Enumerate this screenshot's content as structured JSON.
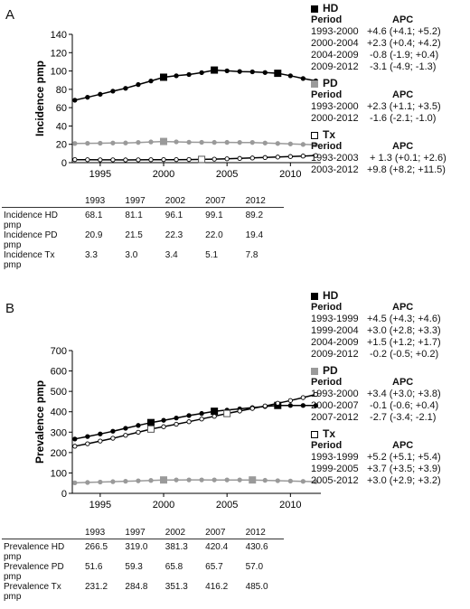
{
  "panels": [
    {
      "letter": "A",
      "legend_blocks": [
        {
          "name": "HD",
          "marker": "square-black",
          "period_label": "Period",
          "apc_label": "APC",
          "rows": [
            [
              "1993-2000",
              "+4.6 (+4.1; +5.2)"
            ],
            [
              "2000-2004",
              "+2.3 (+0.4; +4.2)"
            ],
            [
              "2004-2009",
              " -0.8 (-1.9; +0.4)"
            ],
            [
              "2009-2012",
              " -3.1 (-4.9; -1.3)"
            ]
          ]
        },
        {
          "name": "PD",
          "marker": "square-gray",
          "period_label": "Period",
          "apc_label": "APC",
          "rows": [
            [
              "1993-2000",
              "+2.3 (+1.1; +3.5)"
            ],
            [
              "2000-2012",
              " -1.6 (-2.1; -1.0)"
            ]
          ]
        },
        {
          "name": "Tx",
          "marker": "square-white",
          "period_label": "Period",
          "apc_label": "APC",
          "rows": [
            [
              "1993-2003",
              " + 1.3 (+0.1; +2.6)"
            ],
            [
              "2003-2012",
              "+9.8 (+8.2; +11.5)"
            ]
          ]
        }
      ],
      "table": {
        "years": [
          "1993",
          "1997",
          "2002",
          "2007",
          "2012"
        ],
        "rows": [
          {
            "label": [
              "Incidence HD",
              "pmp"
            ],
            "values": [
              "68.1",
              "81.1",
              "96.1",
              "99.1",
              "89.2"
            ]
          },
          {
            "label": [
              "Incidence PD",
              "pmp"
            ],
            "values": [
              "20.9",
              "21.5",
              "22.3",
              "22.0",
              "19.4"
            ]
          },
          {
            "label": [
              "Incidence Tx",
              "pmp"
            ],
            "values": [
              "3.3",
              "3.0",
              "3.4",
              "5.1",
              "7.8"
            ]
          }
        ]
      }
    },
    {
      "letter": "B",
      "legend_blocks": [
        {
          "name": "HD",
          "marker": "square-black",
          "period_label": "Period",
          "apc_label": "APC",
          "rows": [
            [
              "1993-1999",
              "+4.5 (+4.3; +4.6)"
            ],
            [
              "1999-2004",
              "+3.0 (+2.8; +3.3)"
            ],
            [
              "2004-2009",
              "+1.5 (+1.2; +1.7)"
            ],
            [
              "2009-2012",
              " -0.2 (-0.5; +0.2)"
            ]
          ]
        },
        {
          "name": "PD",
          "marker": "square-gray",
          "period_label": "Period",
          "apc_label": "APC",
          "rows": [
            [
              "1993-2000",
              "+3.4 (+3.0; +3.8)"
            ],
            [
              "2000-2007",
              " -0.1 (-0.6; +0.4)"
            ],
            [
              "2007-2012",
              " -2.7 (-3.4; -2.1)"
            ]
          ]
        },
        {
          "name": "Tx",
          "marker": "square-white",
          "period_label": "Period",
          "apc_label": "APC",
          "rows": [
            [
              "1993-1999",
              "+5.2 (+5.1; +5.4)"
            ],
            [
              "1999-2005",
              "+3.7 (+3.5; +3.9)"
            ],
            [
              "2005-2012",
              "+3.0 (+2.9; +3.2)"
            ]
          ]
        }
      ],
      "table": {
        "years": [
          "1993",
          "1997",
          "2002",
          "2007",
          "2012"
        ],
        "rows": [
          {
            "label": [
              "Prevalence HD",
              "pmp"
            ],
            "values": [
              "266.5",
              "319.0",
              "381.3",
              "420.4",
              "430.6"
            ]
          },
          {
            "label": [
              "Prevalence PD",
              "pmp"
            ],
            "values": [
              "51.6",
              "59.3",
              "65.8",
              "65.7",
              "57.0"
            ]
          },
          {
            "label": [
              "Prevalence Tx",
              "pmp"
            ],
            "values": [
              "231.2",
              "284.8",
              "351.3",
              "416.2",
              "485.0"
            ]
          }
        ]
      }
    }
  ],
  "chart_data": [
    {
      "type": "line",
      "ylabel": "Incidence pmp",
      "xlabel": "",
      "ylim": [
        0,
        140
      ],
      "xlim": [
        1992.8,
        2012.4
      ],
      "yticks": [
        0,
        20,
        40,
        60,
        80,
        100,
        120,
        140
      ],
      "xticks": [
        1995,
        2000,
        2005,
        2010
      ],
      "x": [
        1993,
        1994,
        1995,
        1996,
        1997,
        1998,
        1999,
        2000,
        2001,
        2002,
        2003,
        2004,
        2005,
        2006,
        2007,
        2008,
        2009,
        2010,
        2011,
        2012
      ],
      "series": [
        {
          "name": "HD",
          "color": "#000000",
          "point_fill": "#000000",
          "values": [
            68.1,
            71.3,
            74.6,
            78.0,
            81.1,
            85.2,
            89.1,
            93.2,
            94.8,
            96.1,
            98.2,
            101.0,
            100.2,
            99.4,
            99.1,
            98.3,
            97.5,
            94.8,
            91.8,
            89.2
          ],
          "joinpoints": [
            2000,
            2004,
            2009
          ]
        },
        {
          "name": "PD",
          "color": "#9a9a9a",
          "point_fill": "#9a9a9a",
          "values": [
            20.9,
            21.1,
            21.2,
            21.4,
            21.5,
            22.0,
            22.6,
            23.1,
            22.7,
            22.3,
            22.2,
            22.1,
            22.1,
            22.0,
            22.0,
            21.4,
            20.9,
            20.4,
            19.9,
            19.4
          ],
          "joinpoints": [
            2000
          ]
        },
        {
          "name": "Tx",
          "color": "#000000",
          "point_fill": "#ffffff",
          "values": [
            3.3,
            3.2,
            3.1,
            3.1,
            3.0,
            3.1,
            3.2,
            3.3,
            3.3,
            3.4,
            3.5,
            3.8,
            4.2,
            4.6,
            5.1,
            5.6,
            6.1,
            6.7,
            7.2,
            7.8
          ],
          "joinpoints": [
            2003
          ]
        }
      ]
    },
    {
      "type": "line",
      "ylabel": "Prevalence pmp",
      "xlabel": "",
      "ylim": [
        0,
        700
      ],
      "xlim": [
        1992.8,
        2012.4
      ],
      "yticks": [
        0,
        100,
        200,
        300,
        400,
        500,
        600,
        700
      ],
      "xticks": [
        1995,
        2000,
        2005,
        2010
      ],
      "x": [
        1993,
        1994,
        1995,
        1996,
        1997,
        1998,
        1999,
        2000,
        2001,
        2002,
        2003,
        2004,
        2005,
        2006,
        2007,
        2008,
        2009,
        2010,
        2011,
        2012
      ],
      "series": [
        {
          "name": "HD",
          "color": "#000000",
          "point_fill": "#000000",
          "values": [
            266.5,
            278.5,
            291.2,
            304.5,
            319.0,
            333.1,
            347.0,
            358.1,
            369.5,
            381.3,
            391.8,
            402.5,
            408.3,
            414.3,
            420.4,
            425.8,
            431.0,
            430.8,
            430.7,
            430.6
          ],
          "joinpoints": [
            1999,
            2004,
            2009
          ]
        },
        {
          "name": "PD",
          "color": "#9a9a9a",
          "point_fill": "#9a9a9a",
          "values": [
            51.6,
            53.4,
            55.4,
            57.3,
            59.3,
            61.3,
            63.4,
            65.6,
            65.7,
            65.8,
            65.8,
            65.7,
            65.7,
            65.7,
            65.7,
            63.9,
            62.1,
            60.4,
            58.7,
            57.0
          ],
          "joinpoints": [
            2000,
            2007
          ]
        },
        {
          "name": "Tx",
          "color": "#000000",
          "point_fill": "#ffffff",
          "values": [
            231.2,
            243.2,
            256.4,
            270.0,
            284.8,
            299.6,
            315.2,
            327.0,
            339.0,
            351.3,
            364.5,
            377.9,
            391.5,
            403.5,
            416.2,
            428.6,
            441.7,
            455.0,
            469.4,
            485.0
          ],
          "joinpoints": [
            1999,
            2005
          ]
        }
      ]
    }
  ]
}
